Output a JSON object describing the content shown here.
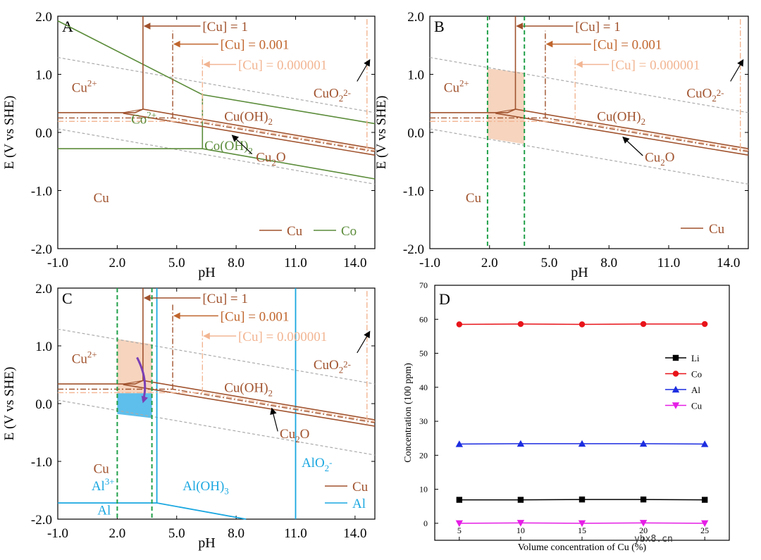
{
  "panels": {
    "A": {
      "letter": "A"
    },
    "B": {
      "letter": "B"
    },
    "C": {
      "letter": "C"
    },
    "D": {
      "letter": "D"
    }
  },
  "pourbaix": {
    "xlabel": "pH",
    "ylabel": "E (V vs SHE)",
    "xticks": [
      "-1.0",
      "2.0",
      "5.0",
      "8.0",
      "11.0",
      "14.0"
    ],
    "yticks": [
      "2.0",
      "1.0",
      "0.0",
      "-1.0",
      "-2.0"
    ],
    "conc_labels": [
      "[Cu] = 1",
      "[Cu] = 0.001",
      "[Cu] = 0.000001"
    ],
    "colors": {
      "cu": "#a0522d",
      "co": "#5b8c3a",
      "al": "#1aa7e0",
      "faint": "#f2b592",
      "green_dash": "#22a04a",
      "gray": "#aaaaaa"
    },
    "panel_A_species": {
      "cu2": "Cu",
      "cuo2": "CuO",
      "cuoh2": "Cu(OH)",
      "cu2o": "Cu",
      "cu": "Cu",
      "co2": "Co",
      "cooh2": "Co(OH)"
    },
    "panel_A_legend": [
      "Cu",
      "Co"
    ],
    "panel_B_legend": [
      "Cu"
    ],
    "panel_C_species": {
      "al3": "Al",
      "aloh3": "Al(OH)",
      "alo2": "AlO",
      "al": "Al"
    },
    "panel_C_legend": [
      "Cu",
      "Al"
    ]
  },
  "chart_data": {
    "type": "line",
    "xlabel": "Volume concentration of Cu (%)",
    "ylabel": "Concentration (100 ppm)",
    "x": [
      5,
      10,
      15,
      20,
      25
    ],
    "xticks": [
      "5",
      "10",
      "15",
      "20",
      "25"
    ],
    "yticks": [
      "0",
      "10",
      "20",
      "30",
      "40",
      "50",
      "60",
      "70"
    ],
    "ylim": [
      -5,
      70
    ],
    "xlim": [
      3,
      27
    ],
    "legend_position": "right",
    "series": [
      {
        "name": "Li",
        "values": [
          6.9,
          6.9,
          7.0,
          7.0,
          6.9
        ],
        "color": "#000000",
        "marker": "square"
      },
      {
        "name": "Co",
        "values": [
          58.5,
          58.6,
          58.5,
          58.6,
          58.6
        ],
        "color": "#e8141a",
        "marker": "circle"
      },
      {
        "name": "Al",
        "values": [
          23.3,
          23.4,
          23.4,
          23.4,
          23.3
        ],
        "color": "#1c2de0",
        "marker": "triangle-up"
      },
      {
        "name": "Cu",
        "values": [
          0.0,
          0.1,
          0.0,
          0.1,
          0.0
        ],
        "color": "#e51ee5",
        "marker": "triangle-down"
      }
    ]
  },
  "watermark": "ybx8.cn"
}
